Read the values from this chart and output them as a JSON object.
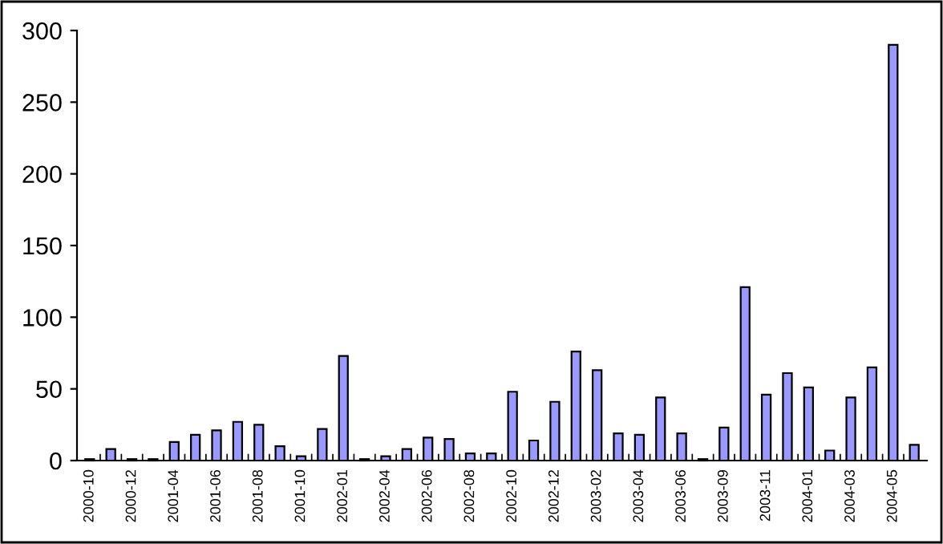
{
  "chart_data": {
    "type": "bar",
    "categories": [
      "2000-10",
      null,
      "2000-12",
      null,
      "2001-04",
      null,
      "2001-06",
      null,
      "2001-08",
      null,
      "2001-10",
      null,
      "2002-01",
      null,
      "2002-04",
      null,
      "2002-06",
      null,
      "2002-08",
      null,
      "2002-10",
      null,
      "2002-12",
      null,
      "2003-02",
      null,
      "2003-04",
      null,
      "2003-06",
      null,
      "2003-09",
      null,
      "2003-11",
      null,
      "2004-01",
      null,
      "2004-03",
      null,
      "2004-05",
      null
    ],
    "values": [
      1,
      8,
      1,
      1,
      13,
      18,
      21,
      27,
      25,
      10,
      3,
      22,
      73,
      1,
      3,
      8,
      16,
      15,
      5,
      5,
      48,
      14,
      41,
      76,
      63,
      19,
      18,
      44,
      19,
      1,
      23,
      121,
      46,
      61,
      51,
      7,
      44,
      65,
      290,
      11
    ],
    "color": "#9999ff",
    "ylim": [
      0,
      300
    ],
    "yticks": [
      0,
      50,
      100,
      150,
      200,
      250,
      300
    ],
    "grid": false,
    "legend": false
  }
}
